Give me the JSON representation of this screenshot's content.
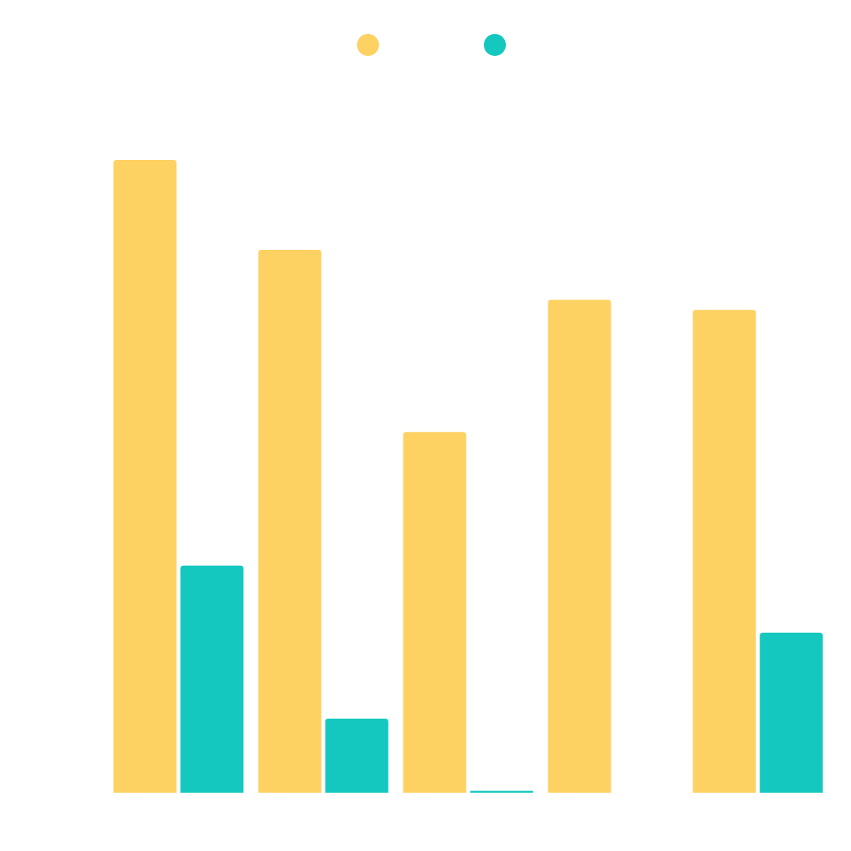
{
  "chart_data": {
    "type": "bar",
    "categories": [
      "",
      "",
      "",
      "",
      ""
    ],
    "series": [
      {
        "values": [
          100,
          85.8,
          57,
          77.9,
          76.3
        ]
      },
      {
        "values": [
          35.9,
          11.7,
          0.3,
          0,
          25.3
        ]
      }
    ],
    "colors": [
      "#fed163",
      "#15c8bf"
    ],
    "ylim": [
      0,
      100
    ],
    "grid": false,
    "legend": "top-center",
    "xlabel": "",
    "ylabel": ""
  }
}
